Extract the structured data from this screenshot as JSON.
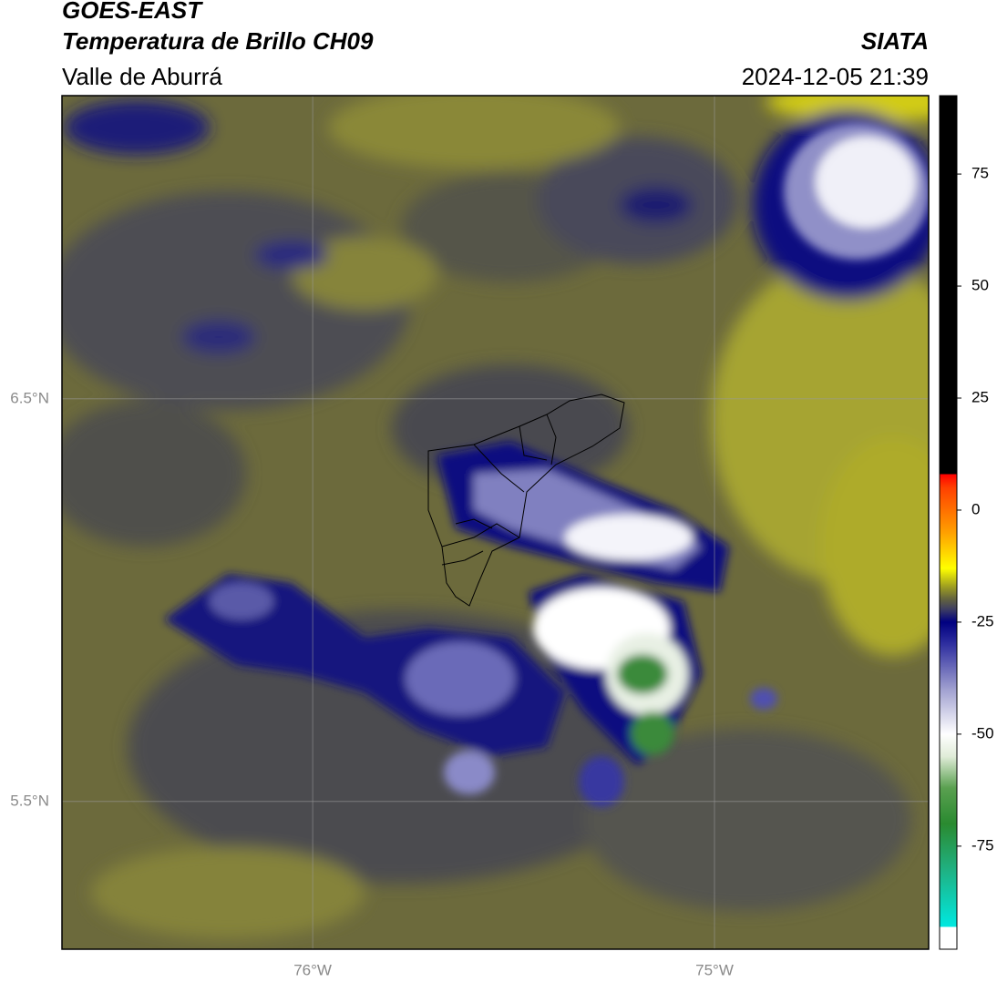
{
  "header": {
    "title": "GOES-EAST",
    "subtitle": "Temperatura de Brillo CH09",
    "region": "Valle de Aburrá",
    "source": "SIATA",
    "datetime": "2024-12-05 21:39"
  },
  "map": {
    "lat_lim": [
      5.133,
      7.253
    ],
    "lon_lim": [
      -76.624,
      -74.467
    ],
    "lat_ticks": [
      {
        "value": 6.5,
        "label": "6.5°N"
      },
      {
        "value": 5.5,
        "label": "5.5°N"
      }
    ],
    "lon_ticks": [
      {
        "value": -76,
        "label": "76°W"
      },
      {
        "value": -75,
        "label": "75°W"
      }
    ],
    "grid": true
  },
  "colorbar": {
    "lim": [
      -98,
      92.5
    ],
    "ticks": [
      75,
      50,
      25,
      0,
      -25,
      -50,
      -75
    ],
    "stops": [
      {
        "value": -98,
        "color": "#ffffff"
      },
      {
        "value": -93,
        "color": "#ffffff"
      },
      {
        "value": -93,
        "color": "#00e8e0"
      },
      {
        "value": -80,
        "color": "#20b080"
      },
      {
        "value": -70,
        "color": "#2a8a30"
      },
      {
        "value": -62,
        "color": "#5aa050"
      },
      {
        "value": -55,
        "color": "#e0ecd8"
      },
      {
        "value": -50,
        "color": "#ffffff"
      },
      {
        "value": -40,
        "color": "#a0a0d0"
      },
      {
        "value": -30,
        "color": "#3030a0"
      },
      {
        "value": -25,
        "color": "#000080"
      },
      {
        "value": -22,
        "color": "#404060"
      },
      {
        "value": -20,
        "color": "#606040"
      },
      {
        "value": -17,
        "color": "#a0a020"
      },
      {
        "value": -13,
        "color": "#ffff00"
      },
      {
        "value": -5,
        "color": "#ffa000"
      },
      {
        "value": 5,
        "color": "#ff4000"
      },
      {
        "value": 8,
        "color": "#ff0000"
      },
      {
        "value": 8,
        "color": "#000000"
      },
      {
        "value": 92.5,
        "color": "#000000"
      }
    ]
  }
}
